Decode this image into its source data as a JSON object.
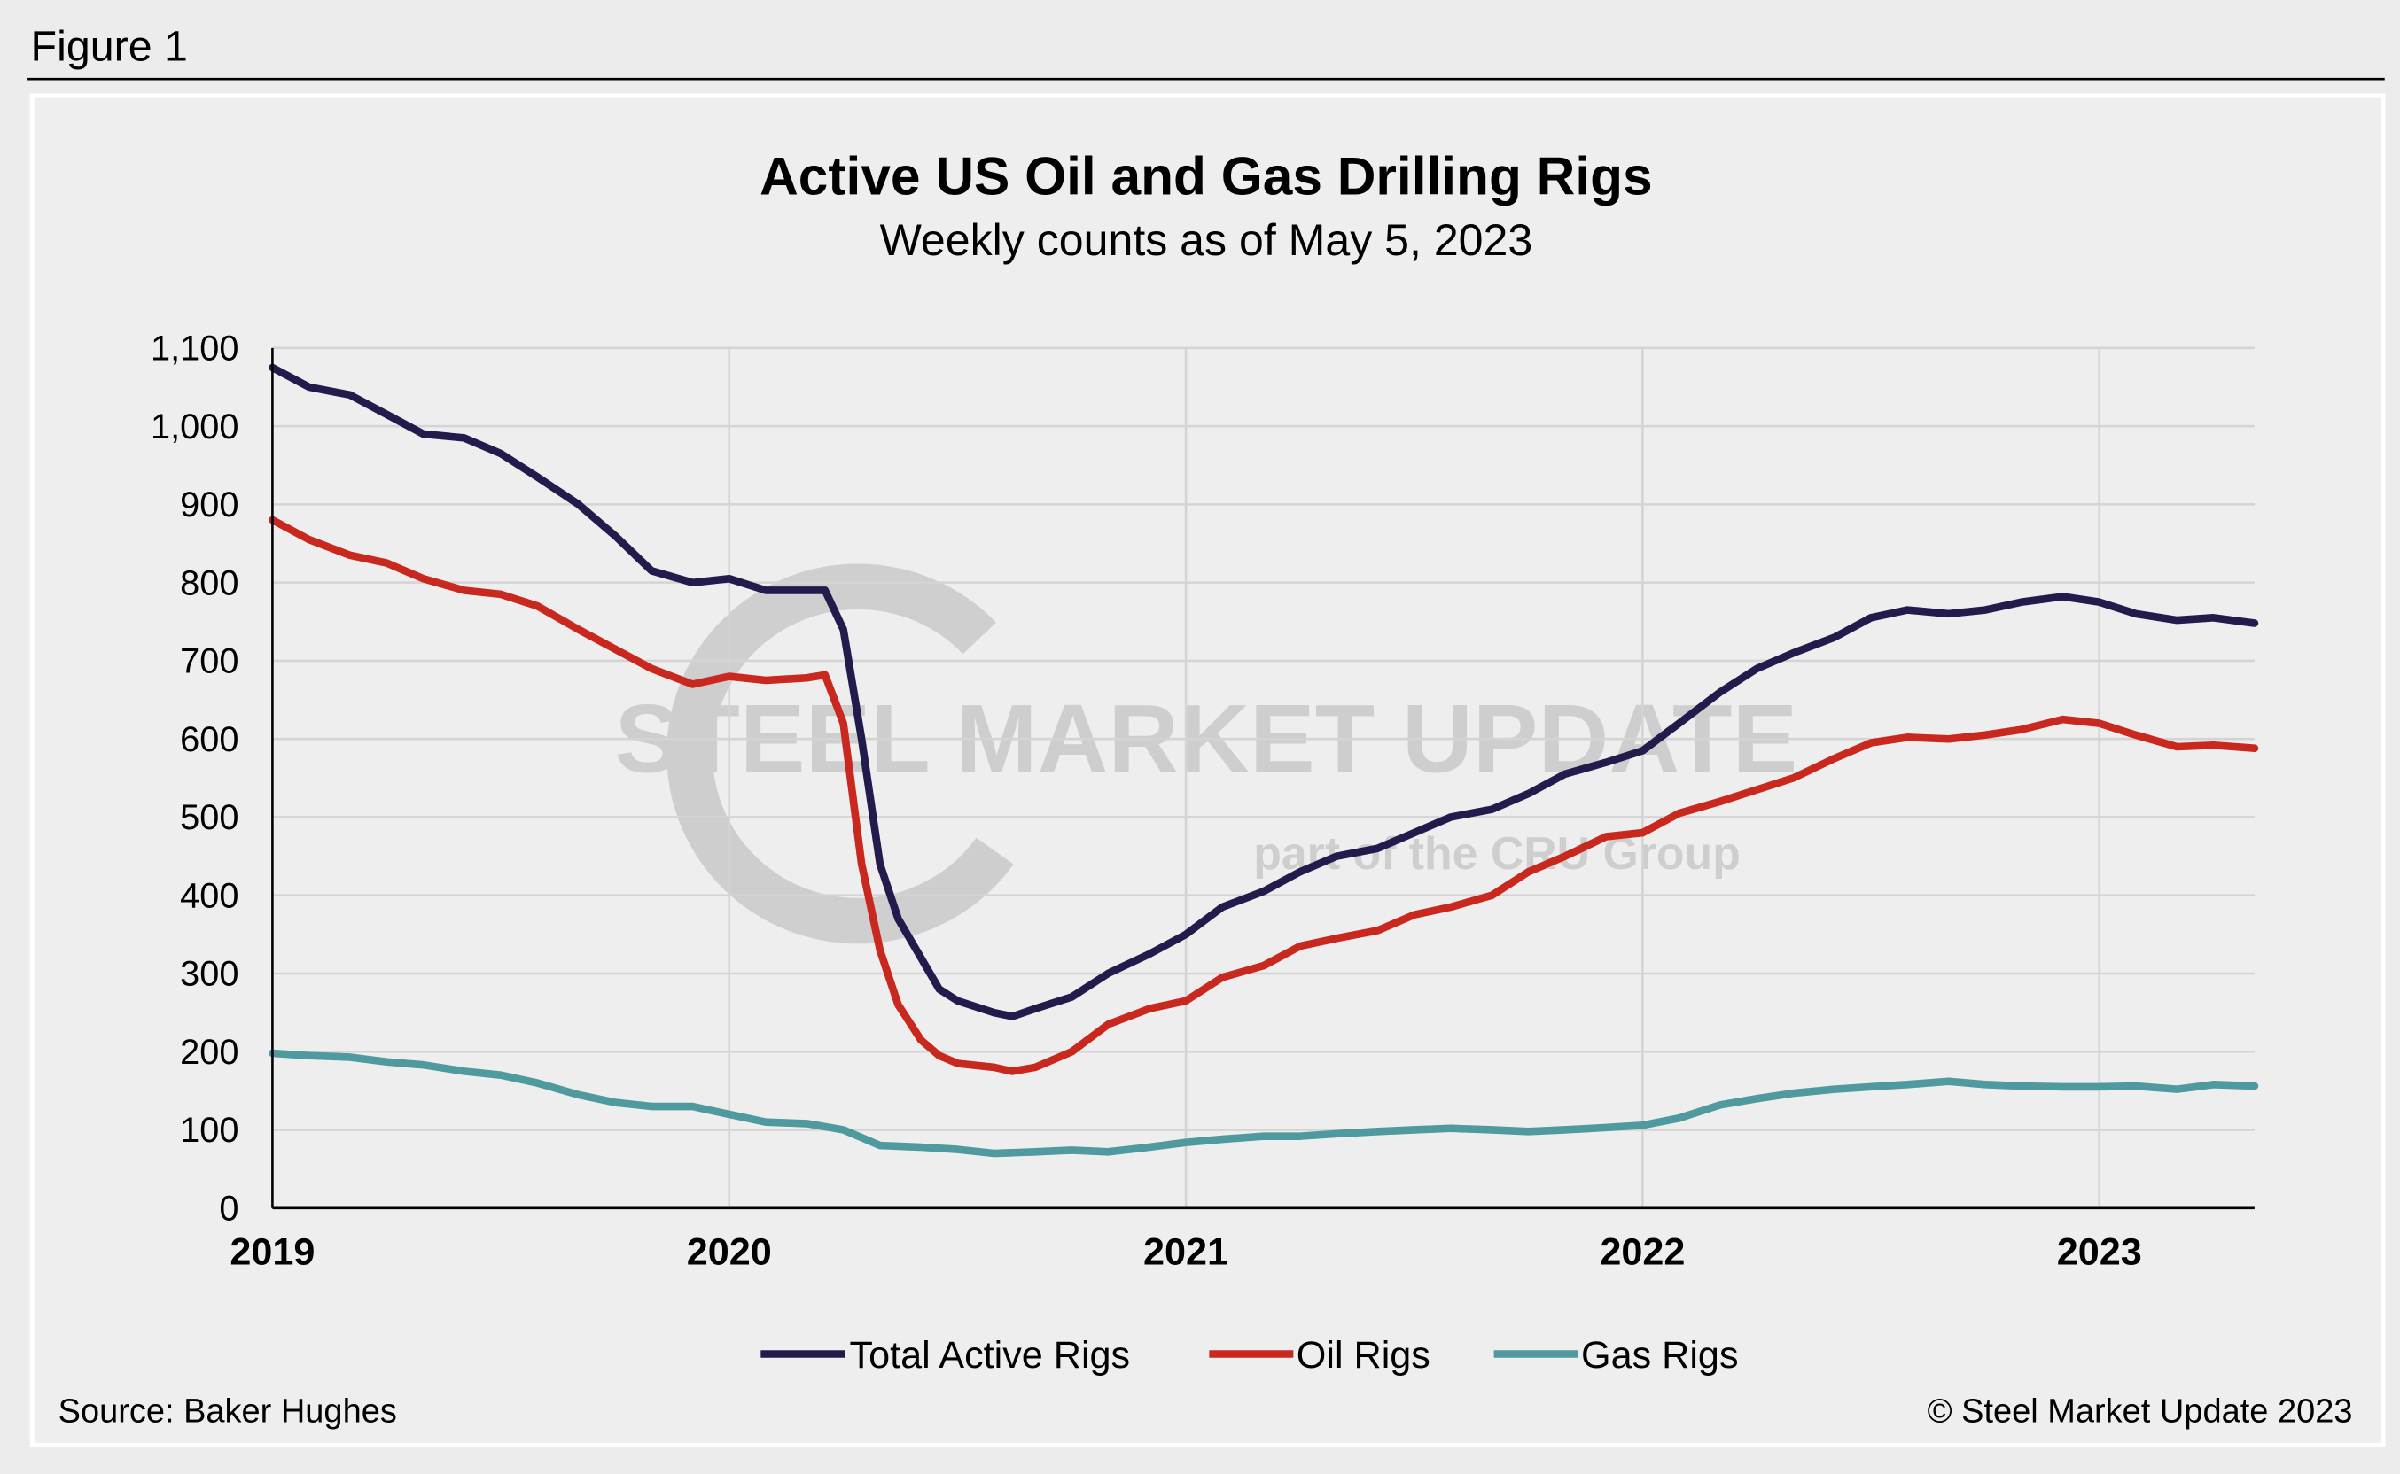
{
  "figure_label": "Figure 1",
  "source": "Source: Baker Hughes",
  "copyright": "© Steel Market Update 2023",
  "watermark": {
    "main": "STEEL MARKET UPDATE",
    "sub": "part of the CRU Group"
  },
  "colors": {
    "total": "#221c4d",
    "oil": "#c9281e",
    "gas": "#4f9a9f",
    "grid": "#d4d4d4",
    "background": "#eeeeee"
  },
  "chart_data": {
    "type": "line",
    "title": "Active US Oil and Gas Drilling Rigs",
    "subtitle": "Weekly counts as of May 5, 2023",
    "xlabel": "",
    "ylabel": "",
    "xlim": [
      2019.0,
      2023.34
    ],
    "ylim": [
      0,
      1100
    ],
    "grid": true,
    "legend_position": "bottom",
    "x_ticks": [
      {
        "value": 2019,
        "label": "2019"
      },
      {
        "value": 2020,
        "label": "2020"
      },
      {
        "value": 2021,
        "label": "2021"
      },
      {
        "value": 2022,
        "label": "2022"
      },
      {
        "value": 2023,
        "label": "2023"
      }
    ],
    "y_ticks": [
      {
        "value": 0,
        "label": "0"
      },
      {
        "value": 100,
        "label": "100"
      },
      {
        "value": 200,
        "label": "200"
      },
      {
        "value": 300,
        "label": "300"
      },
      {
        "value": 400,
        "label": "400"
      },
      {
        "value": 500,
        "label": "500"
      },
      {
        "value": 600,
        "label": "600"
      },
      {
        "value": 700,
        "label": "700"
      },
      {
        "value": 800,
        "label": "800"
      },
      {
        "value": 900,
        "label": "900"
      },
      {
        "value": 1000,
        "label": "1,000"
      },
      {
        "value": 1100,
        "label": "1,100"
      }
    ],
    "series": [
      {
        "name": "Total Active Rigs",
        "key": "total",
        "x": [
          2019.0,
          2019.08,
          2019.17,
          2019.25,
          2019.33,
          2019.42,
          2019.5,
          2019.58,
          2019.67,
          2019.75,
          2019.83,
          2019.92,
          2020.0,
          2020.08,
          2020.17,
          2020.21,
          2020.25,
          2020.29,
          2020.33,
          2020.37,
          2020.42,
          2020.46,
          2020.5,
          2020.58,
          2020.62,
          2020.67,
          2020.75,
          2020.83,
          2020.92,
          2021.0,
          2021.08,
          2021.17,
          2021.25,
          2021.33,
          2021.42,
          2021.5,
          2021.58,
          2021.67,
          2021.75,
          2021.83,
          2021.92,
          2022.0,
          2022.08,
          2022.17,
          2022.25,
          2022.33,
          2022.42,
          2022.5,
          2022.58,
          2022.67,
          2022.75,
          2022.83,
          2022.92,
          2023.0,
          2023.08,
          2023.17,
          2023.25,
          2023.34
        ],
        "y": [
          1075,
          1050,
          1040,
          1015,
          990,
          985,
          965,
          935,
          900,
          860,
          815,
          800,
          805,
          790,
          790,
          790,
          740,
          600,
          440,
          370,
          320,
          280,
          265,
          250,
          245,
          255,
          270,
          300,
          325,
          350,
          385,
          405,
          430,
          450,
          460,
          480,
          500,
          510,
          530,
          555,
          570,
          585,
          620,
          660,
          690,
          710,
          730,
          755,
          765,
          760,
          765,
          775,
          782,
          775,
          760,
          752,
          755,
          748
        ]
      },
      {
        "name": "Oil Rigs",
        "key": "oil",
        "x": [
          2019.0,
          2019.08,
          2019.17,
          2019.25,
          2019.33,
          2019.42,
          2019.5,
          2019.58,
          2019.67,
          2019.75,
          2019.83,
          2019.92,
          2020.0,
          2020.08,
          2020.17,
          2020.21,
          2020.25,
          2020.29,
          2020.33,
          2020.37,
          2020.42,
          2020.46,
          2020.5,
          2020.58,
          2020.62,
          2020.67,
          2020.75,
          2020.83,
          2020.92,
          2021.0,
          2021.08,
          2021.17,
          2021.25,
          2021.33,
          2021.42,
          2021.5,
          2021.58,
          2021.67,
          2021.75,
          2021.83,
          2021.92,
          2022.0,
          2022.08,
          2022.17,
          2022.25,
          2022.33,
          2022.42,
          2022.5,
          2022.58,
          2022.67,
          2022.75,
          2022.83,
          2022.92,
          2023.0,
          2023.08,
          2023.17,
          2023.25,
          2023.34
        ],
        "y": [
          880,
          855,
          835,
          825,
          805,
          790,
          785,
          770,
          740,
          715,
          690,
          670,
          680,
          675,
          678,
          682,
          620,
          440,
          330,
          260,
          215,
          195,
          185,
          180,
          175,
          180,
          200,
          235,
          255,
          265,
          295,
          310,
          335,
          345,
          355,
          375,
          385,
          400,
          430,
          450,
          475,
          480,
          505,
          520,
          535,
          550,
          575,
          595,
          602,
          600,
          605,
          612,
          625,
          620,
          605,
          590,
          592,
          588
        ]
      },
      {
        "name": "Gas Rigs",
        "key": "gas",
        "x": [
          2019.0,
          2019.08,
          2019.17,
          2019.25,
          2019.33,
          2019.42,
          2019.5,
          2019.58,
          2019.67,
          2019.75,
          2019.83,
          2019.92,
          2020.0,
          2020.08,
          2020.17,
          2020.25,
          2020.33,
          2020.42,
          2020.5,
          2020.58,
          2020.67,
          2020.75,
          2020.83,
          2020.92,
          2021.0,
          2021.08,
          2021.17,
          2021.25,
          2021.33,
          2021.42,
          2021.5,
          2021.58,
          2021.67,
          2021.75,
          2021.83,
          2021.92,
          2022.0,
          2022.08,
          2022.17,
          2022.25,
          2022.33,
          2022.42,
          2022.5,
          2022.58,
          2022.67,
          2022.75,
          2022.83,
          2022.92,
          2023.0,
          2023.08,
          2023.17,
          2023.25,
          2023.34
        ],
        "y": [
          198,
          195,
          193,
          187,
          183,
          175,
          170,
          160,
          145,
          135,
          130,
          130,
          120,
          110,
          108,
          100,
          80,
          78,
          75,
          70,
          72,
          74,
          72,
          78,
          84,
          88,
          92,
          92,
          95,
          98,
          100,
          102,
          100,
          98,
          100,
          103,
          106,
          115,
          132,
          140,
          147,
          152,
          155,
          158,
          162,
          158,
          156,
          155,
          155,
          156,
          152,
          158,
          156
        ]
      }
    ]
  }
}
